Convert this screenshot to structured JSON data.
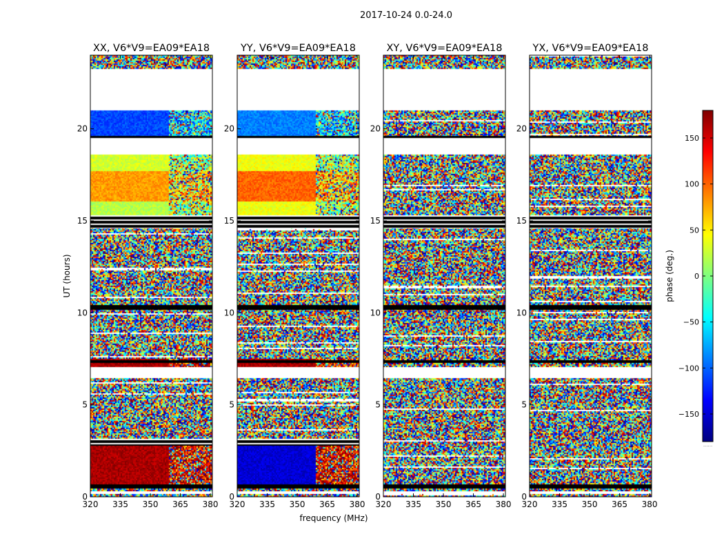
{
  "chart_data": {
    "type": "heatmap",
    "suptitle": "2017-10-24 0.0-24.0",
    "xlabel": "frequency (MHz)",
    "ylabel": "UT (hours)",
    "xlim": [
      320,
      381
    ],
    "ylim": [
      0,
      24
    ],
    "xticks": [
      320,
      335,
      350,
      365,
      380
    ],
    "yticks": [
      0,
      5,
      10,
      15,
      20
    ],
    "colorbar": {
      "label": "phase (deg.)",
      "range": [
        -180,
        180
      ],
      "ticks": [
        150,
        100,
        50,
        0,
        -50,
        -100,
        -150
      ],
      "tick_labels": [
        "150",
        "100",
        "50",
        "0",
        "−50",
        "−100",
        "−150"
      ],
      "colormap": "jet",
      "stops": [
        "#00007f",
        "#0000ff",
        "#007fff",
        "#00ffff",
        "#7fff7f",
        "#ffff00",
        "#ff7f00",
        "#ff0000",
        "#7f0000"
      ],
      "footnote": "......"
    },
    "panels": [
      {
        "title": "XX, V6*V9=EA09*EA18",
        "structure": [
          {
            "from": 0,
            "to": 0.15,
            "pattern": "noise"
          },
          {
            "from": 0.15,
            "to": 0.3,
            "pattern": "flagged-blank"
          },
          {
            "from": 0.3,
            "to": 0.5,
            "pattern": "striped-noise"
          },
          {
            "from": 0.5,
            "to": 0.7,
            "pattern": "flagged-black"
          },
          {
            "from": 0.7,
            "to": 2.8,
            "pattern": "coherent",
            "phase": 165,
            "phase_high": 150
          },
          {
            "from": 2.8,
            "to": 3.2,
            "pattern": "flagged-black-lines"
          },
          {
            "from": 3.2,
            "to": 6.5,
            "pattern": "noise"
          },
          {
            "from": 6.5,
            "to": 7.1,
            "pattern": "flagged-blank"
          },
          {
            "from": 7.1,
            "to": 7.5,
            "pattern": "coherent",
            "phase": 165,
            "phase_high": 160
          },
          {
            "from": 7.5,
            "to": 15.3,
            "pattern": "noise"
          },
          {
            "from": 15.3,
            "to": 16.1,
            "pattern": "coherent",
            "phase": 20,
            "phase_high": 10
          },
          {
            "from": 16.1,
            "to": 17.7,
            "pattern": "coherent",
            "phase": 80,
            "phase_high": 60
          },
          {
            "from": 17.7,
            "to": 18.6,
            "pattern": "coherent",
            "phase": 30,
            "phase_high": 10
          },
          {
            "from": 18.6,
            "to": 19.5,
            "pattern": "flagged-blank"
          },
          {
            "from": 19.5,
            "to": 21.0,
            "pattern": "coherent",
            "phase": -110,
            "phase_high": -60
          },
          {
            "from": 21.0,
            "to": 23.3,
            "pattern": "flagged-blank"
          },
          {
            "from": 23.3,
            "to": 24.0,
            "pattern": "noise"
          }
        ]
      },
      {
        "title": "YY, V6*V9=EA09*EA18",
        "structure": [
          {
            "from": 0,
            "to": 0.15,
            "pattern": "noise"
          },
          {
            "from": 0.15,
            "to": 0.3,
            "pattern": "flagged-blank"
          },
          {
            "from": 0.3,
            "to": 0.5,
            "pattern": "striped-noise"
          },
          {
            "from": 0.5,
            "to": 0.7,
            "pattern": "flagged-black"
          },
          {
            "from": 0.7,
            "to": 2.8,
            "pattern": "coherent",
            "phase": -150,
            "phase_high": 150
          },
          {
            "from": 2.8,
            "to": 3.2,
            "pattern": "flagged-black-lines"
          },
          {
            "from": 3.2,
            "to": 6.5,
            "pattern": "noise"
          },
          {
            "from": 6.5,
            "to": 7.1,
            "pattern": "flagged-blank"
          },
          {
            "from": 7.1,
            "to": 7.5,
            "pattern": "coherent",
            "phase": 165,
            "phase_high": 120
          },
          {
            "from": 7.5,
            "to": 15.3,
            "pattern": "noise"
          },
          {
            "from": 15.3,
            "to": 16.1,
            "pattern": "coherent",
            "phase": 40,
            "phase_high": 10
          },
          {
            "from": 16.1,
            "to": 17.7,
            "pattern": "coherent",
            "phase": 100,
            "phase_high": 60
          },
          {
            "from": 17.7,
            "to": 18.6,
            "pattern": "coherent",
            "phase": 40,
            "phase_high": 10
          },
          {
            "from": 18.6,
            "to": 19.5,
            "pattern": "flagged-blank"
          },
          {
            "from": 19.5,
            "to": 21.0,
            "pattern": "coherent",
            "phase": -90,
            "phase_high": -60
          },
          {
            "from": 21.0,
            "to": 23.3,
            "pattern": "flagged-blank"
          },
          {
            "from": 23.3,
            "to": 24.0,
            "pattern": "noise"
          }
        ]
      },
      {
        "title": "XY, V6*V9=EA09*EA18",
        "structure": [
          {
            "from": 0,
            "to": 0.15,
            "pattern": "noise"
          },
          {
            "from": 0.15,
            "to": 0.3,
            "pattern": "flagged-blank"
          },
          {
            "from": 0.3,
            "to": 0.5,
            "pattern": "striped-noise"
          },
          {
            "from": 0.5,
            "to": 0.7,
            "pattern": "flagged-black"
          },
          {
            "from": 0.7,
            "to": 6.5,
            "pattern": "noise"
          },
          {
            "from": 6.5,
            "to": 7.1,
            "pattern": "flagged-blank"
          },
          {
            "from": 7.1,
            "to": 15.3,
            "pattern": "noise"
          },
          {
            "from": 15.3,
            "to": 18.6,
            "pattern": "noise"
          },
          {
            "from": 18.6,
            "to": 19.5,
            "pattern": "flagged-blank"
          },
          {
            "from": 19.5,
            "to": 21.0,
            "pattern": "noise"
          },
          {
            "from": 21.0,
            "to": 23.3,
            "pattern": "flagged-blank"
          },
          {
            "from": 23.3,
            "to": 24.0,
            "pattern": "noise"
          }
        ]
      },
      {
        "title": "YX, V6*V9=EA09*EA18",
        "structure": [
          {
            "from": 0,
            "to": 0.15,
            "pattern": "noise"
          },
          {
            "from": 0.15,
            "to": 0.3,
            "pattern": "flagged-blank"
          },
          {
            "from": 0.3,
            "to": 0.5,
            "pattern": "striped-noise"
          },
          {
            "from": 0.5,
            "to": 0.7,
            "pattern": "flagged-black"
          },
          {
            "from": 0.7,
            "to": 6.5,
            "pattern": "noise"
          },
          {
            "from": 6.5,
            "to": 7.1,
            "pattern": "flagged-blank"
          },
          {
            "from": 7.1,
            "to": 15.3,
            "pattern": "noise"
          },
          {
            "from": 15.3,
            "to": 18.6,
            "pattern": "noise"
          },
          {
            "from": 18.6,
            "to": 19.5,
            "pattern": "flagged-blank"
          },
          {
            "from": 19.5,
            "to": 21.0,
            "pattern": "noise"
          },
          {
            "from": 21.0,
            "to": 23.3,
            "pattern": "flagged-blank"
          },
          {
            "from": 23.3,
            "to": 24.0,
            "pattern": "noise"
          }
        ]
      }
    ],
    "flagged_bands_all_panels": [
      {
        "from": 14.6,
        "to": 15.3,
        "pattern": "flagged-black-lines"
      },
      {
        "from": 10.2,
        "to": 10.4,
        "pattern": "flagged-black"
      },
      {
        "from": 7.3,
        "to": 7.4,
        "pattern": "flagged-black"
      },
      {
        "from": 19.5,
        "to": 19.6,
        "pattern": "flagged-black"
      }
    ]
  }
}
